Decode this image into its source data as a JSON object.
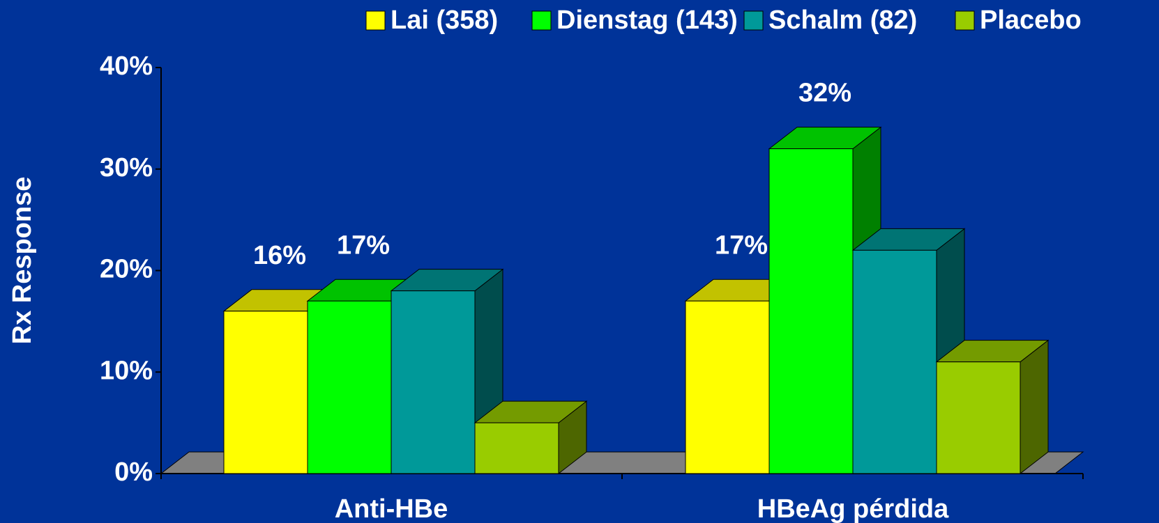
{
  "chart_data": {
    "type": "bar3d",
    "y_label": "Rx Response",
    "categories": [
      "Anti-HBe",
      "HBeAg pérdida"
    ],
    "series": [
      {
        "name": "Lai (358)",
        "color": "#ffff00",
        "values": [
          16,
          17
        ],
        "value_labels": [
          "16%",
          "17%"
        ]
      },
      {
        "name": "Dienstag (143)",
        "color": "#00ff00",
        "values": [
          17,
          32
        ],
        "value_labels": [
          "17%",
          "32%"
        ]
      },
      {
        "name": "Schalm (82)",
        "color": "#009999",
        "values": [
          18,
          22
        ]
      },
      {
        "name": "Placebo",
        "color": "#99cc00",
        "values": [
          5,
          11
        ]
      }
    ],
    "ylim": [
      0,
      40
    ],
    "yticks": [
      {
        "value": 0,
        "label": "0%"
      },
      {
        "value": 10,
        "label": "10%"
      },
      {
        "value": 20,
        "label": "20%"
      },
      {
        "value": 30,
        "label": "30%"
      },
      {
        "value": 40,
        "label": "40%"
      }
    ],
    "floor_color": "#808080",
    "background": "#003399"
  }
}
